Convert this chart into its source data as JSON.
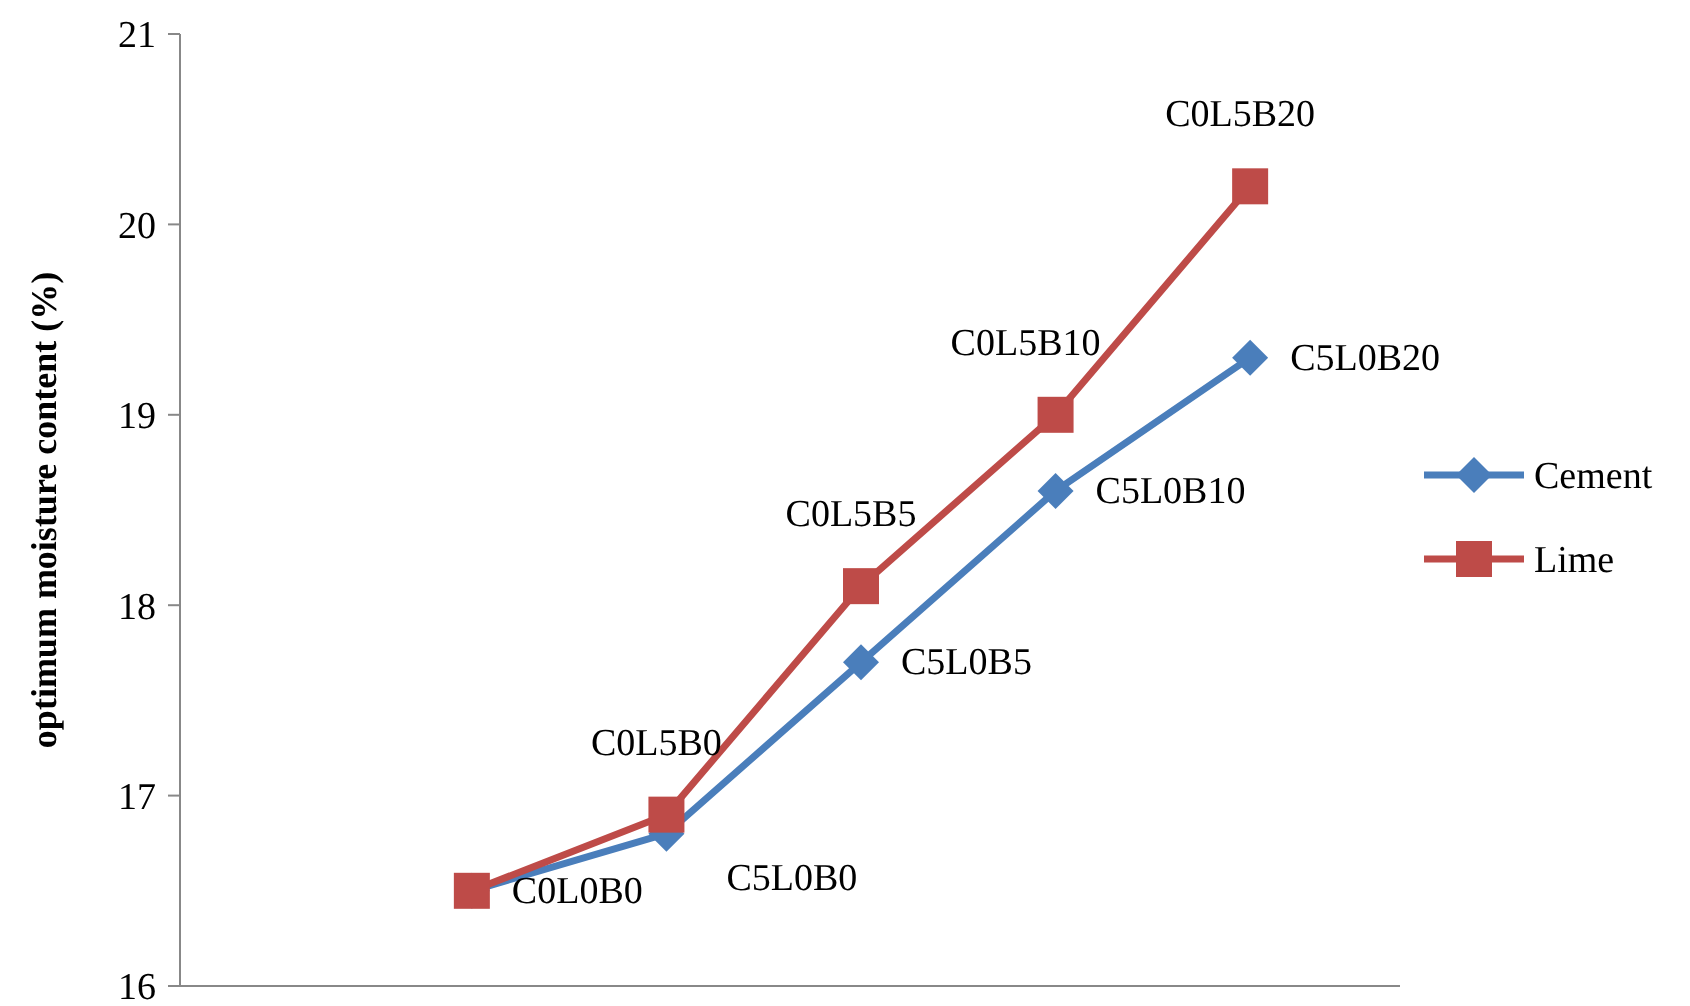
{
  "chart_data": {
    "type": "line",
    "ylabel": "optimum moisture content (%)",
    "categories": [
      null,
      null,
      null,
      null,
      null
    ],
    "ylim": [
      16,
      21
    ],
    "yticks": [
      16,
      17,
      18,
      19,
      20,
      21
    ],
    "grid": false,
    "legend": "right",
    "marker": "diamond",
    "line_style": "solid",
    "series": [
      {
        "name": "Cement",
        "color": "#4a7ebb",
        "marker": "diamond",
        "values": [
          16.5,
          16.8,
          17.7,
          18.6,
          19.3
        ],
        "value_labels": [
          "C0L0B0",
          "C5L0B0",
          "C5L0B5",
          "C5L0B10",
          "C5L0B20"
        ]
      },
      {
        "name": "Lime",
        "color": "#be4b48",
        "marker": "square",
        "values": [
          16.5,
          16.9,
          18.1,
          19.0,
          20.2
        ],
        "value_labels": [
          null,
          "C0L5B0",
          "C0L5B5",
          "C0L5B10",
          "C0L5B20"
        ]
      }
    ]
  }
}
